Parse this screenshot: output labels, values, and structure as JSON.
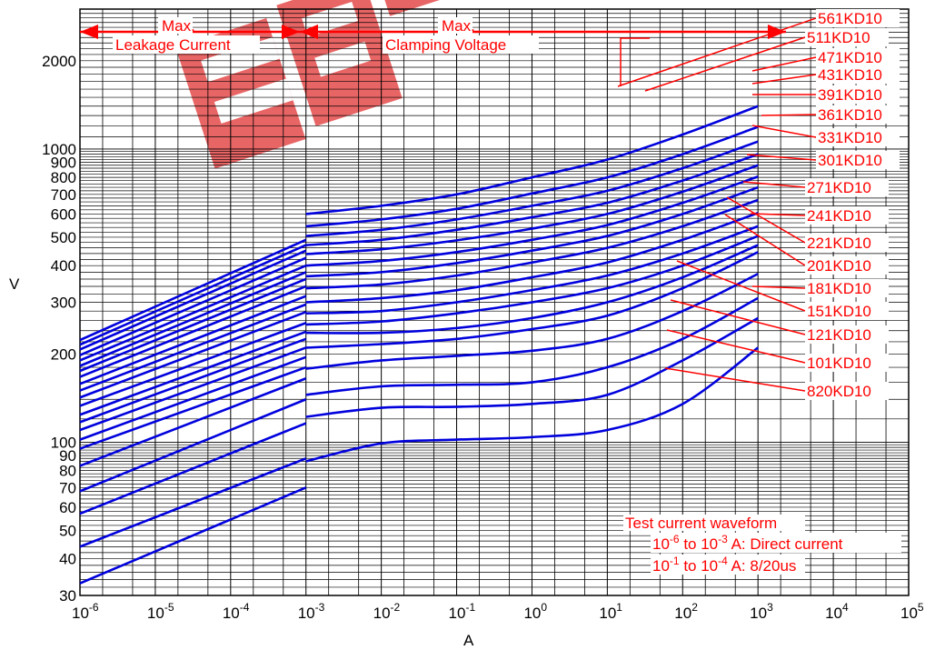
{
  "chart_data": {
    "type": "line",
    "xscale": "log",
    "yscale": "log",
    "xlabel": "A",
    "ylabel": "V",
    "xlim": [
      1e-06,
      100000
    ],
    "ylim": [
      30,
      3000
    ],
    "x_tick_labels": [
      {
        "base": "10",
        "exp": "-6"
      },
      {
        "base": "10",
        "exp": "-5"
      },
      {
        "base": "10",
        "exp": "-4"
      },
      {
        "base": "10",
        "exp": "-3"
      },
      {
        "base": "10",
        "exp": "-2"
      },
      {
        "base": "10",
        "exp": "-1"
      },
      {
        "base": "10",
        "exp": "0"
      },
      {
        "base": "10",
        "exp": "1"
      },
      {
        "base": "10",
        "exp": "2"
      },
      {
        "base": "10",
        "exp": "3"
      },
      {
        "base": "10",
        "exp": "4"
      },
      {
        "base": "10",
        "exp": "5"
      }
    ],
    "y_ticks": [
      {
        "value": 30,
        "label": "30"
      },
      {
        "value": 40,
        "label": "40"
      },
      {
        "value": 50,
        "label": "50"
      },
      {
        "value": 60,
        "label": "60"
      },
      {
        "value": 70,
        "label": "70"
      },
      {
        "value": 80,
        "label": "80"
      },
      {
        "value": 90,
        "label": "90"
      },
      {
        "value": 100,
        "label": "100"
      },
      {
        "value": 200,
        "label": "200"
      },
      {
        "value": 300,
        "label": "300"
      },
      {
        "value": 400,
        "label": "400"
      },
      {
        "value": 500,
        "label": "500"
      },
      {
        "value": 600,
        "label": "600"
      },
      {
        "value": 700,
        "label": "700"
      },
      {
        "value": 800,
        "label": "800"
      },
      {
        "value": 900,
        "label": "900"
      },
      {
        "value": 1000,
        "label": "1000"
      },
      {
        "value": 2000,
        "label": "2000"
      }
    ],
    "grid": true,
    "colors": {
      "series": "#0000dd",
      "annotation": "#ff0000",
      "grid": "#000000"
    },
    "leakage_series": [
      {
        "values": [
          [
            1e-06,
            33
          ],
          [
            0.001,
            70
          ]
        ]
      },
      {
        "values": [
          [
            1e-06,
            44
          ],
          [
            0.001,
            88
          ]
        ]
      },
      {
        "values": [
          [
            1e-06,
            57
          ],
          [
            0.001,
            116
          ]
        ]
      },
      {
        "values": [
          [
            1e-06,
            68
          ],
          [
            0.001,
            140
          ]
        ]
      },
      {
        "values": [
          [
            1e-06,
            83
          ],
          [
            0.001,
            165
          ]
        ]
      },
      {
        "values": [
          [
            1e-06,
            95
          ],
          [
            0.001,
            180
          ]
        ]
      },
      {
        "values": [
          [
            1e-06,
            102
          ],
          [
            0.001,
            195
          ]
        ]
      },
      {
        "values": [
          [
            1e-06,
            110
          ],
          [
            0.001,
            210
          ]
        ]
      },
      {
        "values": [
          [
            1e-06,
            117
          ],
          [
            0.001,
            225
          ]
        ]
      },
      {
        "values": [
          [
            1e-06,
            124
          ],
          [
            0.001,
            238
          ]
        ]
      },
      {
        "values": [
          [
            1e-06,
            133
          ],
          [
            0.001,
            255
          ]
        ]
      },
      {
        "values": [
          [
            1e-06,
            142
          ],
          [
            0.001,
            278
          ]
        ]
      },
      {
        "values": [
          [
            1e-06,
            150
          ],
          [
            0.001,
            295
          ]
        ]
      },
      {
        "values": [
          [
            1e-06,
            158
          ],
          [
            0.001,
            315
          ]
        ]
      },
      {
        "values": [
          [
            1e-06,
            167
          ],
          [
            0.001,
            340
          ]
        ]
      },
      {
        "values": [
          [
            1e-06,
            175
          ],
          [
            0.001,
            360
          ]
        ]
      },
      {
        "values": [
          [
            1e-06,
            182
          ],
          [
            0.001,
            380
          ]
        ]
      },
      {
        "values": [
          [
            1e-06,
            190
          ],
          [
            0.001,
            400
          ]
        ]
      },
      {
        "values": [
          [
            1e-06,
            198
          ],
          [
            0.001,
            425
          ]
        ]
      },
      {
        "values": [
          [
            1e-06,
            207
          ],
          [
            0.001,
            450
          ]
        ]
      },
      {
        "values": [
          [
            1e-06,
            215
          ],
          [
            0.001,
            470
          ]
        ]
      },
      {
        "values": [
          [
            1e-06,
            223
          ],
          [
            0.001,
            490
          ]
        ]
      }
    ],
    "series": [
      {
        "name": "820KD10",
        "values": [
          [
            0.001,
            86
          ],
          [
            0.01,
            99
          ],
          [
            0.1,
            102
          ],
          [
            1,
            104
          ],
          [
            10,
            110
          ],
          [
            100,
            135
          ],
          [
            1000,
            210
          ]
        ]
      },
      {
        "name": "101KD10",
        "values": [
          [
            0.001,
            122
          ],
          [
            0.01,
            131
          ],
          [
            0.1,
            132
          ],
          [
            1,
            135
          ],
          [
            10,
            145
          ],
          [
            100,
            190
          ],
          [
            1000,
            265
          ]
        ]
      },
      {
        "name": "121KD10",
        "values": [
          [
            0.001,
            145
          ],
          [
            0.01,
            155
          ],
          [
            0.1,
            157
          ],
          [
            1,
            160
          ],
          [
            10,
            180
          ],
          [
            100,
            225
          ],
          [
            1000,
            310
          ]
        ]
      },
      {
        "name": "151KD10",
        "values": [
          [
            0.001,
            178
          ],
          [
            0.01,
            190
          ],
          [
            0.1,
            197
          ],
          [
            1,
            205
          ],
          [
            10,
            225
          ],
          [
            100,
            280
          ],
          [
            1000,
            375
          ]
        ]
      },
      {
        "name": "181KD10",
        "values": [
          [
            0.001,
            210
          ],
          [
            0.01,
            216
          ],
          [
            0.1,
            225
          ],
          [
            1,
            243
          ],
          [
            10,
            270
          ],
          [
            100,
            335
          ],
          [
            1000,
            445
          ]
        ]
      },
      {
        "name": "201KD10",
        "values": [
          [
            0.001,
            236
          ],
          [
            0.01,
            236
          ],
          [
            0.1,
            245
          ],
          [
            1,
            265
          ],
          [
            10,
            300
          ],
          [
            100,
            365
          ],
          [
            1000,
            470
          ]
        ]
      },
      {
        "name": "221KD10",
        "values": [
          [
            0.001,
            252
          ],
          [
            0.01,
            258
          ],
          [
            0.1,
            275
          ],
          [
            1,
            300
          ],
          [
            10,
            335
          ],
          [
            100,
            400
          ],
          [
            1000,
            505
          ]
        ]
      },
      {
        "name": "241KD10",
        "values": [
          [
            0.001,
            275
          ],
          [
            0.01,
            280
          ],
          [
            0.1,
            300
          ],
          [
            1,
            330
          ],
          [
            10,
            370
          ],
          [
            100,
            440
          ],
          [
            1000,
            545
          ]
        ]
      },
      {
        "name": "271KD10",
        "values": [
          [
            0.001,
            300
          ],
          [
            0.01,
            310
          ],
          [
            0.1,
            330
          ],
          [
            1,
            365
          ],
          [
            10,
            410
          ],
          [
            100,
            490
          ],
          [
            1000,
            605
          ]
        ]
      },
      {
        "name": "301KD10",
        "values": [
          [
            0.001,
            335
          ],
          [
            0.01,
            345
          ],
          [
            0.1,
            370
          ],
          [
            1,
            410
          ],
          [
            10,
            460
          ],
          [
            100,
            545
          ],
          [
            1000,
            670
          ]
        ]
      },
      {
        "name": "331KD10",
        "values": [
          [
            0.001,
            368
          ],
          [
            0.01,
            380
          ],
          [
            0.1,
            408
          ],
          [
            1,
            450
          ],
          [
            10,
            505
          ],
          [
            100,
            600
          ],
          [
            1000,
            740
          ]
        ]
      },
      {
        "name": "361KD10",
        "values": [
          [
            0.001,
            400
          ],
          [
            0.01,
            415
          ],
          [
            0.1,
            445
          ],
          [
            1,
            490
          ],
          [
            10,
            550
          ],
          [
            100,
            655
          ],
          [
            1000,
            805
          ]
        ]
      },
      {
        "name": "391KD10",
        "values": [
          [
            0.001,
            438
          ],
          [
            0.01,
            455
          ],
          [
            0.1,
            488
          ],
          [
            1,
            535
          ],
          [
            10,
            600
          ],
          [
            100,
            715
          ],
          [
            1000,
            880
          ]
        ]
      },
      {
        "name": "431KD10",
        "values": [
          [
            0.001,
            470
          ],
          [
            0.01,
            490
          ],
          [
            0.1,
            530
          ],
          [
            1,
            585
          ],
          [
            10,
            655
          ],
          [
            100,
            780
          ],
          [
            1000,
            960
          ]
        ]
      },
      {
        "name": "471KD10",
        "values": [
          [
            0.001,
            505
          ],
          [
            0.01,
            530
          ],
          [
            0.1,
            575
          ],
          [
            1,
            640
          ],
          [
            10,
            720
          ],
          [
            100,
            860
          ],
          [
            1000,
            1060
          ]
        ]
      },
      {
        "name": "511KD10",
        "values": [
          [
            0.001,
            545
          ],
          [
            0.01,
            575
          ],
          [
            0.1,
            625
          ],
          [
            1,
            705
          ],
          [
            10,
            800
          ],
          [
            100,
            960
          ],
          [
            1000,
            1190
          ]
        ]
      },
      {
        "name": "561KD10",
        "values": [
          [
            0.001,
            600
          ],
          [
            0.01,
            640
          ],
          [
            0.1,
            700
          ],
          [
            1,
            800
          ],
          [
            10,
            920
          ],
          [
            100,
            1120
          ],
          [
            1000,
            1400
          ]
        ]
      }
    ]
  },
  "annotations": {
    "max_label_left": "Max.",
    "leakage_current": "Leakage Current",
    "max_label_right": "Max.",
    "clamping_voltage": "Clamping Voltage",
    "waveform_title": "Test current waveform",
    "waveform_line1": {
      "pre": "10",
      "exp1": "-6",
      "mid": " to 10",
      "exp2": "-3",
      "post": " A: Direct current"
    },
    "waveform_line2": {
      "pre": "10",
      "exp1": "-1",
      "mid": " to 10",
      "exp2": "-4",
      "post": " A: 8/20us"
    }
  },
  "logo": {
    "text": "EBS"
  }
}
